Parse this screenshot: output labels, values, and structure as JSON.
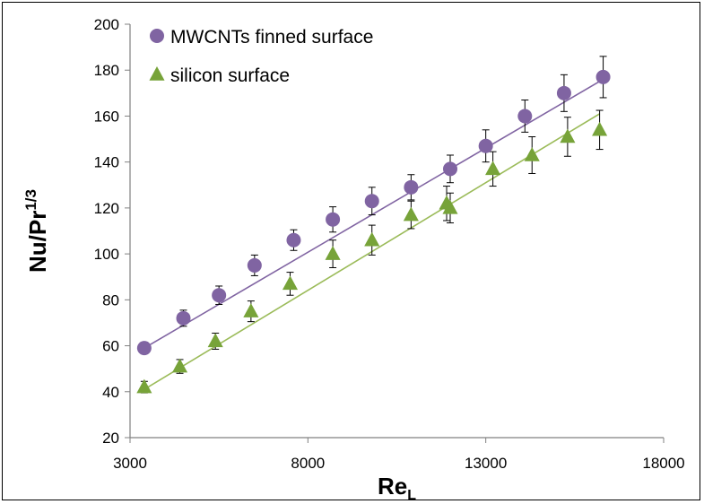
{
  "chart_data": {
    "type": "scatter",
    "xlabel": {
      "main": "Re",
      "sub": "L"
    },
    "ylabel": {
      "main": "Nu/Pr",
      "sup": "1/3"
    },
    "xlim": [
      3000,
      18000
    ],
    "ylim": [
      20,
      200
    ],
    "xticks": [
      3000,
      8000,
      13000,
      18000
    ],
    "yticks": [
      20,
      40,
      60,
      80,
      100,
      120,
      140,
      160,
      180,
      200
    ],
    "grid": false,
    "legend": "top-left",
    "series": [
      {
        "name": "MWCNTs finned surface",
        "marker": "circle",
        "color": "#8064a2",
        "fit_color": "#8064a2",
        "x": [
          3400,
          4500,
          5500,
          6500,
          7600,
          8700,
          9800,
          10900,
          12000,
          13000,
          14100,
          15200,
          16300
        ],
        "y": [
          59,
          72,
          82,
          95,
          106,
          115,
          123,
          129,
          137,
          147,
          160,
          170,
          177
        ],
        "err": [
          2.5,
          3.5,
          4,
          4.5,
          4.5,
          5.5,
          6,
          5.5,
          6,
          7,
          7,
          8,
          9
        ],
        "fit": [
          [
            3400,
            59
          ],
          [
            16300,
            176
          ]
        ]
      },
      {
        "name": "silicon surface",
        "marker": "triangle",
        "color": "#77a339",
        "fit_color": "#9bbb59",
        "x": [
          3400,
          4400,
          5400,
          6400,
          7500,
          8700,
          9800,
          10900,
          11900,
          12000,
          13200,
          14300,
          15300,
          16200
        ],
        "y": [
          42,
          51,
          62,
          75,
          87,
          100,
          106,
          117,
          122,
          120,
          137,
          143,
          151,
          154
        ],
        "err": [
          2.5,
          3,
          3.5,
          4.5,
          5,
          6,
          6.5,
          6,
          7.5,
          6.5,
          7.5,
          8,
          8.5,
          8.5
        ],
        "fit": [
          [
            3400,
            41
          ],
          [
            16200,
            161
          ]
        ]
      }
    ]
  }
}
